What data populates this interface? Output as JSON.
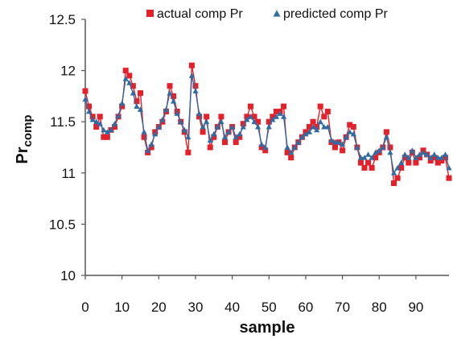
{
  "chart_data": {
    "type": "line",
    "xlabel": "sample",
    "ylabel": {
      "main": "Pr",
      "subscript": "comp"
    },
    "xlim": [
      0,
      99
    ],
    "ylim": [
      10,
      12.5
    ],
    "x_ticks": [
      0,
      10,
      20,
      30,
      40,
      50,
      60,
      70,
      80,
      90
    ],
    "y_ticks": [
      10,
      10.5,
      11,
      11.5,
      12,
      12.5
    ],
    "grid": false,
    "legend_position": "top",
    "series": [
      {
        "name": "actual comp Pr",
        "color": "#e4202a",
        "marker": "square",
        "values": [
          11.8,
          11.65,
          11.55,
          11.45,
          11.55,
          11.35,
          11.35,
          11.42,
          11.45,
          11.55,
          11.65,
          12.0,
          11.95,
          11.85,
          11.7,
          11.78,
          11.35,
          11.2,
          11.25,
          11.4,
          11.45,
          11.5,
          11.6,
          11.85,
          11.75,
          11.6,
          11.5,
          11.4,
          11.2,
          12.05,
          11.85,
          11.55,
          11.4,
          11.55,
          11.25,
          11.35,
          11.45,
          11.55,
          11.3,
          11.4,
          11.45,
          11.3,
          11.35,
          11.48,
          11.55,
          11.65,
          11.55,
          11.5,
          11.25,
          11.22,
          11.5,
          11.55,
          11.6,
          11.6,
          11.65,
          11.2,
          11.15,
          11.25,
          11.3,
          11.35,
          11.4,
          11.45,
          11.5,
          11.45,
          11.65,
          11.55,
          11.6,
          11.3,
          11.25,
          11.3,
          11.22,
          11.35,
          11.47,
          11.45,
          11.25,
          11.1,
          11.05,
          11.1,
          11.05,
          11.15,
          11.2,
          11.25,
          11.4,
          11.25,
          10.9,
          10.95,
          11.05,
          11.15,
          11.1,
          11.2,
          11.1,
          11.15,
          11.22,
          11.18,
          11.12,
          11.15,
          11.1,
          11.12,
          11.15,
          10.95
        ]
      },
      {
        "name": "predicted comp Pr",
        "color": "#2e6da4",
        "marker": "triangle",
        "values": [
          11.72,
          11.6,
          11.52,
          11.5,
          11.48,
          11.42,
          11.4,
          11.42,
          11.48,
          11.56,
          11.68,
          11.92,
          11.88,
          11.78,
          11.65,
          11.62,
          11.4,
          11.22,
          11.28,
          11.38,
          11.45,
          11.52,
          11.62,
          11.78,
          11.7,
          11.58,
          11.5,
          11.42,
          11.35,
          11.95,
          11.8,
          11.58,
          11.45,
          11.5,
          11.32,
          11.38,
          11.45,
          11.5,
          11.35,
          11.4,
          11.45,
          11.35,
          11.38,
          11.45,
          11.52,
          11.55,
          11.5,
          11.45,
          11.28,
          11.25,
          11.45,
          11.52,
          11.55,
          11.58,
          11.55,
          11.25,
          11.2,
          11.25,
          11.3,
          11.35,
          11.38,
          11.4,
          11.45,
          11.42,
          11.5,
          11.45,
          11.45,
          11.32,
          11.3,
          11.3,
          11.28,
          11.35,
          11.4,
          11.38,
          11.25,
          11.15,
          11.15,
          11.18,
          11.15,
          11.2,
          11.22,
          11.25,
          11.35,
          11.2,
          11.0,
          11.05,
          11.1,
          11.18,
          11.15,
          11.22,
          11.15,
          11.18,
          11.2,
          11.18,
          11.15,
          11.18,
          11.15,
          11.15,
          11.18,
          11.05
        ]
      }
    ]
  }
}
